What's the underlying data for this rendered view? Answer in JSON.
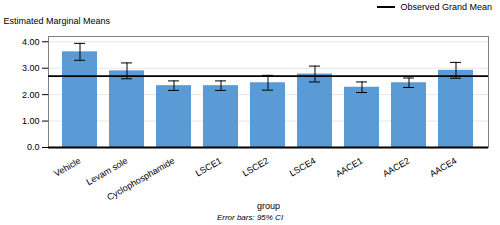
{
  "chart_data": {
    "type": "bar",
    "categories": [
      "Vehicle",
      "Levam sole",
      "Cyclophosphamide",
      "LSCE1",
      "LSCE2",
      "LSCE4",
      "AACE1",
      "AACE2",
      "AACE4"
    ],
    "values": [
      3.62,
      2.9,
      2.34,
      2.34,
      2.45,
      2.78,
      2.28,
      2.45,
      2.92
    ],
    "errors_upper": [
      0.32,
      0.3,
      0.18,
      0.18,
      0.28,
      0.3,
      0.2,
      0.18,
      0.3
    ],
    "errors_lower": [
      0.32,
      0.3,
      0.18,
      0.18,
      0.28,
      0.3,
      0.2,
      0.18,
      0.3
    ],
    "color": "#5B9BD5",
    "xlabel": "group",
    "ylabel": "Estimated Marginal Means",
    "ylim": [
      0,
      4.2
    ],
    "yticks": [
      {
        "value": 0,
        "label": "0.0"
      },
      {
        "value": 1,
        "label": "1.00"
      },
      {
        "value": 2,
        "label": "2.00"
      },
      {
        "value": 3,
        "label": "3.00"
      },
      {
        "value": 4,
        "label": "4.00"
      }
    ],
    "grid": true,
    "grand_mean": 2.7,
    "grand_mean_label": "Observed Grand Mean",
    "legend": "upper right",
    "footnote": "Error bars: 95% CI"
  }
}
